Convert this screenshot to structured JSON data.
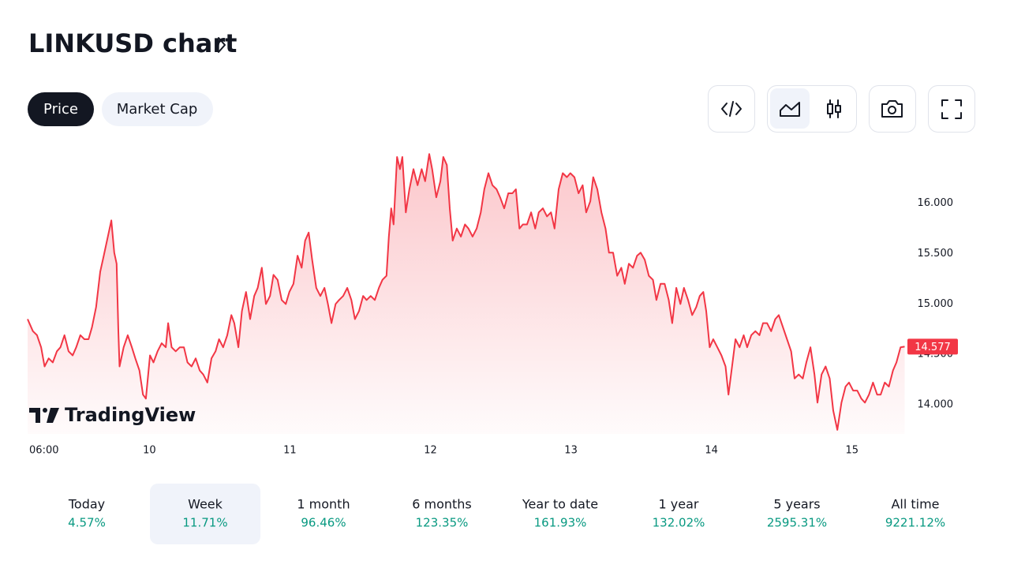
{
  "header": {
    "title": "LINKUSD chart"
  },
  "tabs": [
    "Price",
    "Market Cap"
  ],
  "chart_data": {
    "type": "area",
    "color": "#f23645",
    "watermark": "TradingView",
    "xlim": [
      3.2,
      153.2
    ],
    "ylim": [
      13.71,
      16.57
    ],
    "xticks": [
      {
        "value": 6,
        "label": "06:00"
      },
      {
        "value": 24,
        "label": "10"
      },
      {
        "value": 48,
        "label": "11"
      },
      {
        "value": 72,
        "label": "12"
      },
      {
        "value": 96,
        "label": "13"
      },
      {
        "value": 120,
        "label": "14"
      },
      {
        "value": 144,
        "label": "15"
      }
    ],
    "yticks": [
      {
        "value": 14,
        "label": "14.000"
      },
      {
        "value": 14.5,
        "label": "14.500"
      },
      {
        "value": 15,
        "label": "15.000"
      },
      {
        "value": 15.5,
        "label": "15.500"
      },
      {
        "value": 16,
        "label": "16.000"
      }
    ],
    "x": [
      3.2,
      4.1,
      4.8,
      5.5,
      6.1,
      6.8,
      7.5,
      8.2,
      8.8,
      9.5,
      10.2,
      10.9,
      11.5,
      12.2,
      12.9,
      13.6,
      14.2,
      14.9,
      15.6,
      16.2,
      16.9,
      17.5,
      18.0,
      18.4,
      18.7,
      18.9,
      19.6,
      20.3,
      21.0,
      21.6,
      22.3,
      22.9,
      23.4,
      24.1,
      24.7,
      25.4,
      26.1,
      26.8,
      27.2,
      27.8,
      28.5,
      29.2,
      29.9,
      30.5,
      31.2,
      31.9,
      32.6,
      33.2,
      33.9,
      34.6,
      35.3,
      35.9,
      36.6,
      37.3,
      38.0,
      38.5,
      39.2,
      39.8,
      40.5,
      41.2,
      41.9,
      42.5,
      43.2,
      43.9,
      44.6,
      45.2,
      45.9,
      46.6,
      47.3,
      47.9,
      48.6,
      49.3,
      50.0,
      50.6,
      51.2,
      51.8,
      52.5,
      53.2,
      53.9,
      54.5,
      55.1,
      55.8,
      56.4,
      57.1,
      57.8,
      58.5,
      59.1,
      59.8,
      60.5,
      61.1,
      61.8,
      62.5,
      63.2,
      63.8,
      64.5,
      64.9,
      65.3,
      65.7,
      66.3,
      66.8,
      67.2,
      67.8,
      68.4,
      69.1,
      69.8,
      70.5,
      71.1,
      71.8,
      72.3,
      73.0,
      73.7,
      74.2,
      74.8,
      75.3,
      75.8,
      76.5,
      77.2,
      77.9,
      78.5,
      79.2,
      79.9,
      80.6,
      81.2,
      81.9,
      82.6,
      83.3,
      83.9,
      84.6,
      85.3,
      86.0,
      86.6,
      87.2,
      87.8,
      88.5,
      89.2,
      89.9,
      90.5,
      91.2,
      91.9,
      92.6,
      93.2,
      93.9,
      94.6,
      95.3,
      95.9,
      96.6,
      97.3,
      98.0,
      98.6,
      99.3,
      99.8,
      100.5,
      101.2,
      101.9,
      102.5,
      103.2,
      103.9,
      104.6,
      105.2,
      105.9,
      106.6,
      107.3,
      107.9,
      108.6,
      109.3,
      110.0,
      110.6,
      111.3,
      112.0,
      112.7,
      113.3,
      114.0,
      114.7,
      115.3,
      116.0,
      116.7,
      117.4,
      118.0,
      118.6,
      119.1,
      119.7,
      120.3,
      121.0,
      121.7,
      122.4,
      122.9,
      123.6,
      124.1,
      124.8,
      125.5,
      126.1,
      126.8,
      127.5,
      128.2,
      128.8,
      129.5,
      130.2,
      130.9,
      131.5,
      132.2,
      132.9,
      133.6,
      134.2,
      134.9,
      135.6,
      136.2,
      136.9,
      137.6,
      138.1,
      138.8,
      139.5,
      140.2,
      140.8,
      141.5,
      142.2,
      142.9,
      143.5,
      144.2,
      144.9,
      145.6,
      146.2,
      146.9,
      147.6,
      148.3,
      148.9,
      149.6,
      150.3,
      151.0,
      151.6,
      152.3,
      153.0
    ],
    "values": [
      14.85,
      14.73,
      14.69,
      14.57,
      14.38,
      14.46,
      14.42,
      14.53,
      14.57,
      14.69,
      14.53,
      14.49,
      14.57,
      14.69,
      14.65,
      14.65,
      14.77,
      14.97,
      15.32,
      15.48,
      15.67,
      15.83,
      15.51,
      15.4,
      14.73,
      14.38,
      14.57,
      14.69,
      14.57,
      14.46,
      14.34,
      14.1,
      14.06,
      14.49,
      14.42,
      14.53,
      14.61,
      14.57,
      14.81,
      14.57,
      14.53,
      14.57,
      14.57,
      14.42,
      14.38,
      14.46,
      14.34,
      14.3,
      14.22,
      14.46,
      14.53,
      14.65,
      14.57,
      14.69,
      14.89,
      14.81,
      14.57,
      14.93,
      15.12,
      14.85,
      15.08,
      15.16,
      15.36,
      15.0,
      15.08,
      15.29,
      15.24,
      15.04,
      15.0,
      15.12,
      15.2,
      15.48,
      15.36,
      15.63,
      15.71,
      15.44,
      15.16,
      15.08,
      15.16,
      15.0,
      14.81,
      15.0,
      15.04,
      15.08,
      15.16,
      15.04,
      14.85,
      14.93,
      15.08,
      15.04,
      15.08,
      15.04,
      15.16,
      15.24,
      15.28,
      15.67,
      15.95,
      15.79,
      16.46,
      16.34,
      16.46,
      15.91,
      16.14,
      16.34,
      16.18,
      16.34,
      16.22,
      16.49,
      16.34,
      16.06,
      16.22,
      16.46,
      16.38,
      15.95,
      15.63,
      15.75,
      15.67,
      15.79,
      15.75,
      15.67,
      15.75,
      15.91,
      16.14,
      16.3,
      16.18,
      16.14,
      16.06,
      15.95,
      16.1,
      16.1,
      16.14,
      15.75,
      15.79,
      15.79,
      15.91,
      15.75,
      15.91,
      15.95,
      15.87,
      15.91,
      15.75,
      16.14,
      16.3,
      16.26,
      16.3,
      16.26,
      16.1,
      16.18,
      15.91,
      16.02,
      16.26,
      16.14,
      15.91,
      15.75,
      15.51,
      15.51,
      15.28,
      15.36,
      15.2,
      15.4,
      15.36,
      15.48,
      15.51,
      15.44,
      15.28,
      15.24,
      15.04,
      15.2,
      15.2,
      15.04,
      14.81,
      15.16,
      15.0,
      15.16,
      15.04,
      14.89,
      14.97,
      15.08,
      15.12,
      14.93,
      14.57,
      14.65,
      14.57,
      14.49,
      14.38,
      14.1,
      14.42,
      14.65,
      14.57,
      14.69,
      14.57,
      14.69,
      14.73,
      14.69,
      14.81,
      14.81,
      14.73,
      14.85,
      14.89,
      14.77,
      14.65,
      14.53,
      14.26,
      14.3,
      14.26,
      14.42,
      14.57,
      14.3,
      14.02,
      14.3,
      14.38,
      14.26,
      13.94,
      13.75,
      14.02,
      14.18,
      14.22,
      14.14,
      14.14,
      14.06,
      14.02,
      14.1,
      14.22,
      14.1,
      14.1,
      14.22,
      14.18,
      14.34,
      14.42,
      14.57,
      14.577
    ]
  },
  "periods": [
    {
      "label": "Today",
      "change": "4.57%"
    },
    {
      "label": "Week",
      "change": "11.71%"
    },
    {
      "label": "1 month",
      "change": "96.46%"
    },
    {
      "label": "6 months",
      "change": "123.35%"
    },
    {
      "label": "Year to date",
      "change": "161.93%"
    },
    {
      "label": "1 year",
      "change": "132.02%"
    },
    {
      "label": "5 years",
      "change": "2595.31%"
    },
    {
      "label": "All time",
      "change": "9221.12%"
    }
  ]
}
